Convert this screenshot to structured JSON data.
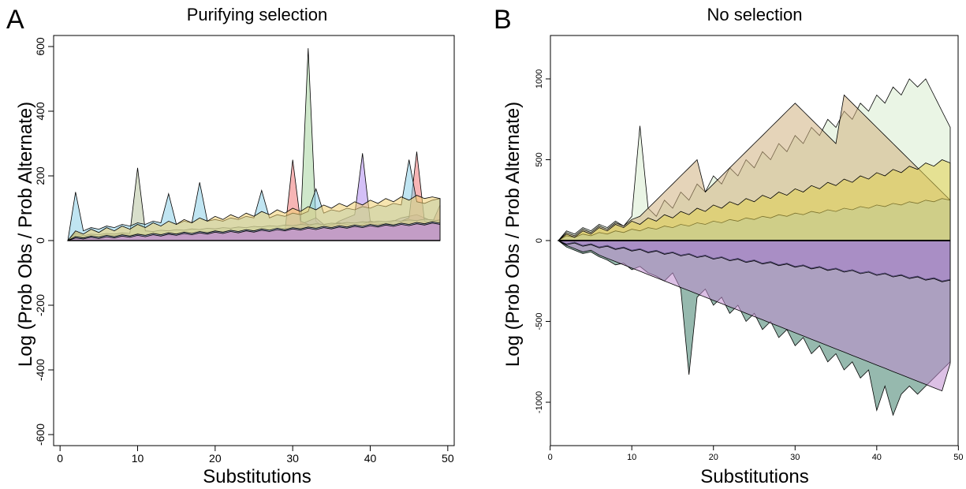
{
  "chart_data": [
    {
      "panel_letter": "A",
      "type": "area",
      "title": "Purifying selection",
      "xlabel": "Substitutions",
      "ylabel": "Log (Prob Obs / Prob Alternate)",
      "xlim": [
        1,
        49
      ],
      "ylim": [
        -600,
        600
      ],
      "xticks": [
        0,
        10,
        20,
        30,
        40,
        50
      ],
      "yticks": [
        -600,
        -400,
        -200,
        0,
        200,
        400,
        600
      ],
      "x": [
        1,
        2,
        3,
        4,
        5,
        6,
        7,
        8,
        9,
        10,
        11,
        12,
        13,
        14,
        15,
        16,
        17,
        18,
        19,
        20,
        21,
        22,
        23,
        24,
        25,
        26,
        27,
        28,
        29,
        30,
        31,
        32,
        33,
        34,
        35,
        36,
        37,
        38,
        39,
        40,
        41,
        42,
        43,
        44,
        45,
        46,
        47,
        48,
        49
      ],
      "series": [
        {
          "color": "#a8d5a0",
          "values": [
            0,
            20,
            10,
            15,
            12,
            18,
            14,
            20,
            16,
            22,
            18,
            25,
            20,
            18,
            22,
            24,
            20,
            26,
            22,
            30,
            24,
            26,
            28,
            24,
            30,
            28,
            26,
            30,
            28,
            35,
            40,
            595,
            60,
            40,
            35,
            45,
            38,
            42,
            40,
            44,
            38,
            45,
            40,
            42,
            46,
            40,
            44,
            42,
            40
          ]
        },
        {
          "color": "#b08cf0",
          "values": [
            0,
            15,
            8,
            12,
            10,
            14,
            12,
            16,
            14,
            18,
            16,
            20,
            18,
            22,
            20,
            24,
            22,
            26,
            24,
            28,
            26,
            30,
            28,
            32,
            30,
            34,
            32,
            36,
            34,
            40,
            50,
            60,
            70,
            50,
            45,
            60,
            70,
            80,
            270,
            60,
            55,
            50,
            60,
            70,
            75,
            80,
            70,
            60,
            65
          ]
        },
        {
          "color": "#f07878",
          "values": [
            0,
            10,
            6,
            9,
            8,
            10,
            9,
            12,
            10,
            14,
            12,
            15,
            13,
            16,
            14,
            18,
            16,
            20,
            18,
            22,
            20,
            24,
            22,
            26,
            24,
            28,
            26,
            30,
            28,
            250,
            60,
            50,
            40,
            45,
            50,
            55,
            50,
            45,
            50,
            60,
            55,
            50,
            45,
            60,
            70,
            275,
            60,
            55,
            110
          ]
        },
        {
          "color": "#b8c4a0",
          "values": [
            0,
            25,
            15,
            20,
            18,
            22,
            20,
            24,
            22,
            225,
            30,
            28,
            32,
            30,
            34,
            32,
            36,
            34,
            38,
            36,
            40,
            38,
            42,
            40,
            44,
            42,
            46,
            44,
            48,
            46,
            50,
            48,
            52,
            50,
            54,
            52,
            56,
            54,
            58,
            56,
            60,
            58,
            62,
            60,
            64,
            62,
            66,
            64,
            60
          ]
        },
        {
          "color": "#8cd0e8",
          "values": [
            0,
            150,
            30,
            40,
            35,
            45,
            40,
            50,
            45,
            55,
            50,
            60,
            55,
            145,
            50,
            60,
            55,
            180,
            60,
            65,
            60,
            70,
            65,
            75,
            70,
            155,
            70,
            80,
            75,
            85,
            80,
            90,
            160,
            85,
            95,
            90,
            100,
            95,
            105,
            100,
            110,
            105,
            115,
            110,
            250,
            120,
            115,
            125,
            130
          ]
        },
        {
          "color": "#f0d070",
          "values": [
            0,
            30,
            20,
            35,
            25,
            40,
            30,
            45,
            35,
            50,
            40,
            55,
            45,
            60,
            50,
            65,
            55,
            70,
            60,
            75,
            65,
            80,
            70,
            85,
            75,
            90,
            80,
            95,
            85,
            100,
            90,
            105,
            95,
            110,
            100,
            115,
            105,
            120,
            110,
            125,
            115,
            130,
            120,
            135,
            125,
            140,
            130,
            135,
            130
          ]
        },
        {
          "color": "#6c7cd8",
          "values": [
            0,
            12,
            8,
            14,
            10,
            16,
            12,
            18,
            14,
            20,
            16,
            22,
            18,
            24,
            20,
            26,
            22,
            28,
            24,
            30,
            26,
            32,
            28,
            34,
            30,
            36,
            32,
            38,
            34,
            40,
            36,
            42,
            38,
            44,
            40,
            46,
            42,
            48,
            44,
            50,
            46,
            52,
            48,
            54,
            50,
            56,
            52,
            58,
            54
          ]
        },
        {
          "color": "#e89ad0",
          "values": [
            0,
            8,
            5,
            10,
            6,
            12,
            8,
            14,
            10,
            16,
            12,
            18,
            14,
            20,
            16,
            22,
            18,
            24,
            20,
            26,
            22,
            28,
            24,
            30,
            26,
            32,
            28,
            34,
            30,
            36,
            32,
            38,
            34,
            40,
            36,
            42,
            38,
            44,
            40,
            46,
            42,
            48,
            44,
            50,
            46,
            52,
            48,
            54,
            50
          ]
        }
      ]
    },
    {
      "panel_letter": "B",
      "type": "area",
      "title": "No selection",
      "xlabel": "Substitutions",
      "ylabel": "Log (Prob Obs / Prob Alternate)",
      "xlim": [
        1,
        49
      ],
      "ylim": [
        -1200,
        1200
      ],
      "xticks": [
        0,
        10,
        20,
        30,
        40,
        50
      ],
      "yticks": [
        -1000,
        -500,
        0,
        500,
        1000
      ],
      "x": [
        1,
        2,
        3,
        4,
        5,
        6,
        7,
        8,
        9,
        10,
        11,
        12,
        13,
        14,
        15,
        16,
        17,
        18,
        19,
        20,
        21,
        22,
        23,
        24,
        25,
        26,
        27,
        28,
        29,
        30,
        31,
        32,
        33,
        34,
        35,
        36,
        37,
        38,
        39,
        40,
        41,
        42,
        43,
        44,
        45,
        46,
        47,
        48,
        49
      ],
      "series": [
        {
          "color": "#d8ecd0",
          "values": [
            0,
            60,
            40,
            80,
            60,
            100,
            80,
            120,
            90,
            150,
            710,
            200,
            150,
            250,
            200,
            300,
            250,
            350,
            300,
            400,
            350,
            450,
            400,
            500,
            450,
            550,
            500,
            600,
            550,
            650,
            600,
            700,
            650,
            750,
            700,
            800,
            750,
            850,
            800,
            900,
            850,
            950,
            900,
            1000,
            950,
            1000,
            900,
            800,
            700
          ]
        },
        {
          "color": "#40806c",
          "values": [
            0,
            -40,
            -60,
            -80,
            -70,
            -100,
            -120,
            -150,
            -140,
            -180,
            -160,
            -200,
            -220,
            -250,
            -200,
            -300,
            -830,
            -350,
            -300,
            -400,
            -350,
            -450,
            -400,
            -500,
            -450,
            -550,
            -500,
            -600,
            -550,
            -650,
            -600,
            -700,
            -650,
            -750,
            -700,
            -800,
            -750,
            -850,
            -800,
            -1050,
            -900,
            -1080,
            -950,
            -900,
            -950,
            -900,
            -850,
            -800,
            -750
          ]
        },
        {
          "color": "#d0b080",
          "values": [
            0,
            50,
            30,
            70,
            50,
            90,
            70,
            110,
            90,
            130,
            150,
            200,
            250,
            300,
            350,
            400,
            450,
            500,
            300,
            350,
            400,
            450,
            500,
            550,
            600,
            650,
            700,
            750,
            800,
            850,
            800,
            750,
            700,
            650,
            600,
            900,
            850,
            800,
            750,
            700,
            650,
            600,
            550,
            500,
            450,
            400,
            350,
            300,
            250
          ]
        },
        {
          "color": "#c08cd0",
          "values": [
            0,
            -30,
            -50,
            -70,
            -60,
            -90,
            -110,
            -130,
            -150,
            -170,
            -190,
            -210,
            -230,
            -250,
            -270,
            -290,
            -310,
            -330,
            -350,
            -370,
            -390,
            -410,
            -430,
            -450,
            -470,
            -490,
            -510,
            -530,
            -550,
            -570,
            -590,
            -610,
            -630,
            -650,
            -670,
            -690,
            -710,
            -730,
            -750,
            -770,
            -790,
            -810,
            -830,
            -850,
            -870,
            -890,
            -910,
            -930,
            -760
          ]
        },
        {
          "color": "#a0c8e8",
          "values": [
            0,
            30,
            20,
            40,
            30,
            50,
            40,
            60,
            50,
            70,
            60,
            80,
            70,
            90,
            80,
            100,
            90,
            110,
            100,
            120,
            110,
            130,
            120,
            140,
            130,
            150,
            140,
            160,
            150,
            170,
            160,
            180,
            170,
            190,
            180,
            200,
            190,
            210,
            200,
            220,
            210,
            230,
            220,
            240,
            230,
            250,
            240,
            260,
            250
          ]
        },
        {
          "color": "#f0b0c0",
          "values": [
            0,
            -20,
            -10,
            -30,
            -20,
            -40,
            -30,
            -50,
            -40,
            -60,
            -50,
            -70,
            -60,
            -80,
            -70,
            -90,
            -80,
            -100,
            -90,
            -110,
            -100,
            -120,
            -110,
            -130,
            -120,
            -140,
            -130,
            -150,
            -140,
            -160,
            -150,
            -170,
            -160,
            -180,
            -170,
            -190,
            -180,
            -200,
            -190,
            -210,
            -200,
            -220,
            -210,
            -230,
            -220,
            -240,
            -230,
            -250,
            -240
          ]
        },
        {
          "color": "#e0d050",
          "values": [
            0,
            40,
            20,
            60,
            40,
            80,
            60,
            100,
            80,
            120,
            100,
            140,
            120,
            160,
            140,
            180,
            160,
            200,
            180,
            220,
            200,
            240,
            220,
            260,
            240,
            280,
            260,
            300,
            280,
            320,
            300,
            340,
            320,
            360,
            340,
            380,
            360,
            400,
            380,
            420,
            400,
            440,
            420,
            460,
            440,
            480,
            460,
            500,
            480
          ]
        },
        {
          "color": "#8878c8",
          "values": [
            0,
            -25,
            -15,
            -35,
            -25,
            -45,
            -35,
            -55,
            -45,
            -65,
            -55,
            -75,
            -65,
            -85,
            -75,
            -95,
            -85,
            -105,
            -95,
            -115,
            -105,
            -125,
            -115,
            -135,
            -125,
            -145,
            -135,
            -155,
            -145,
            -165,
            -155,
            -175,
            -165,
            -185,
            -175,
            -195,
            -185,
            -205,
            -195,
            -215,
            -205,
            -225,
            -215,
            -235,
            -225,
            -245,
            -235,
            -255,
            -245
          ]
        }
      ]
    }
  ]
}
